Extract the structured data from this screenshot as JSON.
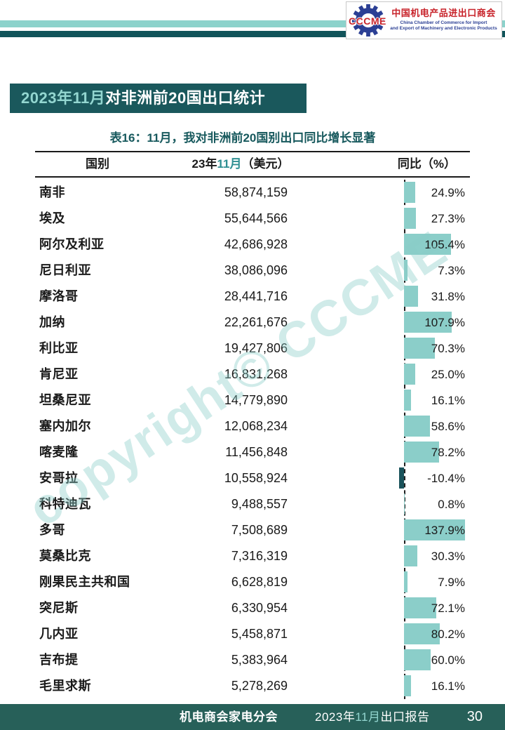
{
  "logo": {
    "abbr": "CCCME",
    "name_cn": "中国机电产品进出口商会",
    "name_en_line1": "China Chamber of Commerce for Import",
    "name_en_line2": "and Export of Machinery and Electronic Products"
  },
  "banner": {
    "highlight": "2023年11月",
    "title": "对非洲前20国出口统计"
  },
  "caption": "表16：11月，我对非洲前20国别出口同比增长显著",
  "watermark": "copyright© CCCME",
  "table": {
    "columns": {
      "country": "国别",
      "value_year": "23年",
      "value_month": "11月",
      "value_unit": "（美元）",
      "yoy": "同比（%）"
    },
    "rows": [
      {
        "country": "南非",
        "value": "58,874,159",
        "yoy": 24.9,
        "yoy_label": "24.9%"
      },
      {
        "country": "埃及",
        "value": "55,644,566",
        "yoy": 27.3,
        "yoy_label": "27.3%"
      },
      {
        "country": "阿尔及利亚",
        "value": "42,686,928",
        "yoy": 105.4,
        "yoy_label": "105.4%"
      },
      {
        "country": "尼日利亚",
        "value": "38,086,096",
        "yoy": 7.3,
        "yoy_label": "7.3%"
      },
      {
        "country": "摩洛哥",
        "value": "28,441,716",
        "yoy": 31.8,
        "yoy_label": "31.8%"
      },
      {
        "country": "加纳",
        "value": "22,261,676",
        "yoy": 107.9,
        "yoy_label": "107.9%"
      },
      {
        "country": "利比亚",
        "value": "19,427,806",
        "yoy": 70.3,
        "yoy_label": "70.3%"
      },
      {
        "country": "肯尼亚",
        "value": "16,831,268",
        "yoy": 25.0,
        "yoy_label": "25.0%"
      },
      {
        "country": "坦桑尼亚",
        "value": "14,779,890",
        "yoy": 16.1,
        "yoy_label": "16.1%"
      },
      {
        "country": "塞内加尔",
        "value": "12,068,234",
        "yoy": 58.6,
        "yoy_label": "58.6%"
      },
      {
        "country": "喀麦隆",
        "value": "11,456,848",
        "yoy": 78.2,
        "yoy_label": "78.2%"
      },
      {
        "country": "安哥拉",
        "value": "10,558,924",
        "yoy": -10.4,
        "yoy_label": "-10.4%"
      },
      {
        "country": "科特迪瓦",
        "value": "9,488,557",
        "yoy": 0.8,
        "yoy_label": "0.8%"
      },
      {
        "country": "多哥",
        "value": "7,508,689",
        "yoy": 137.9,
        "yoy_label": "137.9%"
      },
      {
        "country": "莫桑比克",
        "value": "7,316,319",
        "yoy": 30.3,
        "yoy_label": "30.3%"
      },
      {
        "country": "刚果民主共和国",
        "value": "6,628,819",
        "yoy": 7.9,
        "yoy_label": "7.9%"
      },
      {
        "country": "突尼斯",
        "value": "6,330,954",
        "yoy": 72.1,
        "yoy_label": "72.1%"
      },
      {
        "country": "几内亚",
        "value": "5,458,871",
        "yoy": 80.2,
        "yoy_label": "80.2%"
      },
      {
        "country": "吉布提",
        "value": "5,383,964",
        "yoy": 60.0,
        "yoy_label": "60.0%"
      },
      {
        "country": "毛里求斯",
        "value": "5,278,269",
        "yoy": 16.1,
        "yoy_label": "16.1%"
      }
    ]
  },
  "chart_data": {
    "type": "bar",
    "title": "表16：11月，我对非洲前20国别出口同比增长显著",
    "categories": [
      "南非",
      "埃及",
      "阿尔及利亚",
      "尼日利亚",
      "摩洛哥",
      "加纳",
      "利比亚",
      "肯尼亚",
      "坦桑尼亚",
      "塞内加尔",
      "喀麦隆",
      "安哥拉",
      "科特迪瓦",
      "多哥",
      "莫桑比克",
      "刚果民主共和国",
      "突尼斯",
      "几内亚",
      "吉布提",
      "毛里求斯"
    ],
    "series": [
      {
        "name": "23年11月（美元）",
        "values": [
          58874159,
          55644566,
          42686928,
          38086096,
          28441716,
          22261676,
          19427806,
          16831268,
          14779890,
          12068234,
          11456848,
          10558924,
          9488557,
          7508689,
          7316319,
          6628819,
          6330954,
          5458871,
          5383964,
          5278269
        ]
      },
      {
        "name": "同比（%）",
        "values": [
          24.9,
          27.3,
          105.4,
          7.3,
          31.8,
          107.9,
          70.3,
          25.0,
          16.1,
          58.6,
          78.2,
          -10.4,
          0.8,
          137.9,
          30.3,
          7.9,
          72.1,
          80.2,
          60.0,
          16.1
        ]
      }
    ],
    "orientation": "horizontal",
    "axis_zero_line": "dashed",
    "legend": "none"
  },
  "footer": {
    "division": "机电商会家电分会",
    "report_year": "2023年",
    "report_month": "11月",
    "report_suffix": "出口报告",
    "page_number": "30"
  },
  "colors": {
    "dark_teal": "#1A585C",
    "stripe_dark": "#11545A",
    "stripe_light": "#8CD2CB",
    "footer_teal": "#276059",
    "bar_teal": "#8BCEC9",
    "bar_negative": "#1A535B",
    "highlight_teal": "#93D6D0",
    "caption_teal": "#17595D",
    "month_teal": "#2F8F92",
    "logo_red": "#C8242B",
    "logo_blue": "#2B3F94"
  }
}
